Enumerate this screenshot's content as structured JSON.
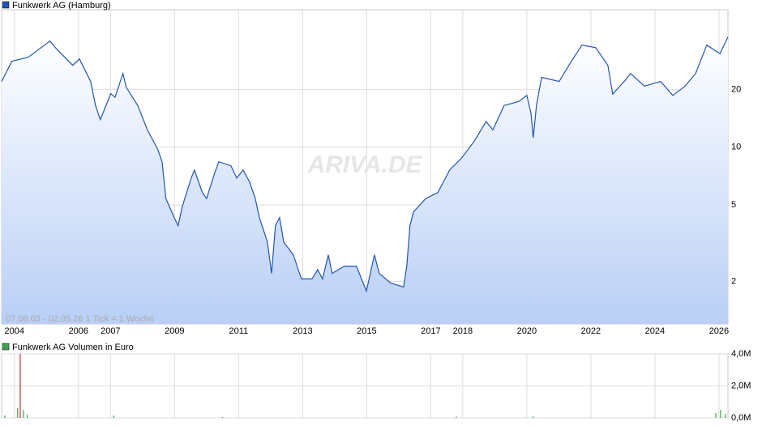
{
  "chart_data": [
    {
      "type": "line",
      "title": "Funkwerk AG (Hamburg)",
      "note": "07.08.03 - 02.05.26   1 Tick = 1 Woche",
      "watermark": "ARIVA.DE",
      "color": "#2155b0",
      "log_scale": true,
      "grid": true,
      "x": [
        2003.6,
        2003.92,
        2004.43,
        2004.94,
        2005.11,
        2005.32,
        2005.82,
        2006.03,
        2006.38,
        2006.53,
        2006.68,
        2007.01,
        2007.14,
        2007.39,
        2007.49,
        2007.85,
        2008.15,
        2008.48,
        2008.61,
        2008.73,
        2008.99,
        2009.11,
        2009.24,
        2009.52,
        2009.62,
        2009.87,
        2010.0,
        2010.25,
        2010.38,
        2010.76,
        2010.94,
        2011.14,
        2011.34,
        2011.52,
        2011.65,
        2011.9,
        2012.03,
        2012.15,
        2012.28,
        2012.41,
        2012.71,
        2012.96,
        2013.29,
        2013.47,
        2013.62,
        2013.8,
        2013.92,
        2014.3,
        2014.68,
        2014.99,
        2015.24,
        2015.39,
        2015.75,
        2016.15,
        2016.25,
        2016.35,
        2016.46,
        2016.84,
        2017.22,
        2017.59,
        2017.97,
        2018.35,
        2018.73,
        2018.94,
        2019.29,
        2019.75,
        2020.0,
        2020.13,
        2020.2,
        2020.3,
        2020.46,
        2021.01,
        2021.39,
        2021.72,
        2022.15,
        2022.53,
        2022.68,
        2023.04,
        2023.24,
        2023.67,
        2024.18,
        2024.56,
        2024.94,
        2025.27,
        2025.62,
        2026.03,
        2026.28
      ],
      "values": [
        22,
        28,
        29.4,
        34,
        35.7,
        32.4,
        26.7,
        28.8,
        22,
        16.5,
        13.9,
        19,
        18.2,
        24.2,
        20.5,
        16.5,
        12.3,
        9.7,
        8.4,
        5.4,
        4.3,
        3.9,
        4.9,
        6.9,
        7.6,
        5.8,
        5.4,
        7.3,
        8.4,
        8.0,
        6.9,
        7.6,
        6.6,
        5.4,
        4.3,
        3.2,
        2.2,
        3.9,
        4.3,
        3.2,
        2.75,
        2.06,
        2.06,
        2.3,
        2.06,
        2.75,
        2.2,
        2.4,
        2.4,
        1.78,
        2.75,
        2.2,
        1.96,
        1.87,
        2.4,
        3.9,
        4.6,
        5.4,
        5.8,
        7.6,
        8.8,
        10.7,
        13.6,
        12.3,
        16.5,
        17.3,
        18.6,
        15,
        11.2,
        16.5,
        23.1,
        22,
        28,
        34,
        33,
        26.7,
        18.9,
        22,
        24.2,
        20.8,
        22,
        18.6,
        20.8,
        24.2,
        34,
        30.7,
        37.5
      ],
      "xlim": [
        2003.6,
        2026.28
      ],
      "xticks": [
        2004,
        2006,
        2007,
        2009,
        2011,
        2013,
        2015,
        2017,
        2018,
        2020,
        2022,
        2024,
        2026
      ],
      "ylim": [
        1.2,
        52
      ],
      "yticks": [
        2,
        5,
        10,
        20
      ]
    },
    {
      "type": "bar",
      "title": "Funkwerk AG Volumen in Euro",
      "color": "#3fa34d",
      "x": [
        2003.7,
        2004.1,
        2004.18,
        2004.28,
        2004.4,
        2007.1,
        2010.5,
        2017.8,
        2020.2,
        2025.9,
        2026.05,
        2026.2
      ],
      "values": [
        150000,
        600000,
        4000000,
        500000,
        200000,
        150000,
        60000,
        80000,
        90000,
        300000,
        500000,
        250000
      ],
      "colors": [
        "#3fa34d",
        "#3fa34d",
        "#d22a2a",
        "#3fa34d",
        "#3fa34d",
        "#3fa34d",
        "#3fa34d",
        "#3fa34d",
        "#3fa34d",
        "#3fa34d",
        "#3fa34d",
        "#3fa34d"
      ],
      "xlim": [
        2003.6,
        2026.28
      ],
      "ylim": [
        0,
        4000000
      ],
      "yticks": [
        {
          "value": 0,
          "label": "0,0M"
        },
        {
          "value": 2000000,
          "label": "2,0M"
        },
        {
          "value": 4000000,
          "label": "4,0M"
        }
      ]
    }
  ]
}
